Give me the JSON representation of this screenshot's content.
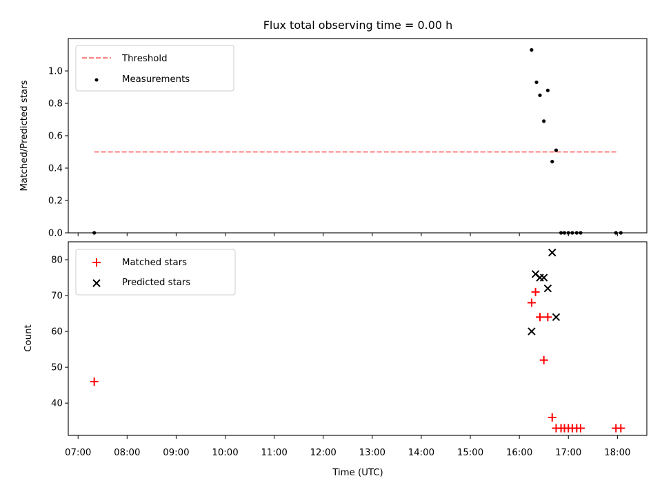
{
  "title": "Flux total observing time = 0.00 h",
  "xlabel": "Time (UTC)",
  "chart_data": [
    {
      "type": "scatter",
      "ylabel": "Matched/Predicted stars",
      "xlim": [
        6.8,
        18.6
      ],
      "ylim": [
        0.0,
        1.2
      ],
      "yticks": [
        0.0,
        0.2,
        0.4,
        0.6,
        0.8,
        1.0
      ],
      "ytick_labels": [
        "0.0",
        "0.2",
        "0.4",
        "0.6",
        "0.8",
        "1.0"
      ],
      "legend_position": "upper left",
      "threshold": {
        "name": "Threshold",
        "x": [
          7.33,
          18.0
        ],
        "y": 0.5,
        "color": "#ff7f7f"
      },
      "series": [
        {
          "name": "Measurements",
          "marker": "dot",
          "color": "#000000",
          "points": [
            [
              7.33,
              0.0
            ],
            [
              16.25,
              1.13
            ],
            [
              16.35,
              0.93
            ],
            [
              16.42,
              0.85
            ],
            [
              16.5,
              0.69
            ],
            [
              16.58,
              0.88
            ],
            [
              16.67,
              0.44
            ],
            [
              16.75,
              0.51
            ],
            [
              16.85,
              0.0
            ],
            [
              16.92,
              0.0
            ],
            [
              17.0,
              0.0
            ],
            [
              17.08,
              0.0
            ],
            [
              17.17,
              0.0
            ],
            [
              17.25,
              0.0
            ],
            [
              17.97,
              0.0
            ],
            [
              18.07,
              0.0
            ]
          ]
        }
      ]
    },
    {
      "type": "scatter",
      "ylabel": "Count",
      "xlim": [
        6.8,
        18.6
      ],
      "ylim": [
        31,
        85
      ],
      "yticks": [
        40,
        50,
        60,
        70,
        80
      ],
      "ytick_labels": [
        "40",
        "50",
        "60",
        "70",
        "80"
      ],
      "legend_position": "upper left",
      "series": [
        {
          "name": "Matched stars",
          "marker": "plus",
          "color": "#ff0000",
          "points": [
            [
              7.33,
              46
            ],
            [
              16.25,
              68
            ],
            [
              16.33,
              71
            ],
            [
              16.42,
              64
            ],
            [
              16.5,
              52
            ],
            [
              16.58,
              64
            ],
            [
              16.67,
              36
            ],
            [
              16.75,
              33
            ],
            [
              16.85,
              33
            ],
            [
              16.92,
              33
            ],
            [
              17.0,
              33
            ],
            [
              17.08,
              33
            ],
            [
              17.17,
              33
            ],
            [
              17.25,
              33
            ],
            [
              17.97,
              33
            ],
            [
              18.07,
              33
            ]
          ]
        },
        {
          "name": "Predicted stars",
          "marker": "x",
          "color": "#000000",
          "points": [
            [
              16.25,
              60
            ],
            [
              16.33,
              76
            ],
            [
              16.42,
              75
            ],
            [
              16.5,
              75
            ],
            [
              16.58,
              72
            ],
            [
              16.67,
              82
            ],
            [
              16.75,
              64
            ]
          ]
        }
      ]
    }
  ],
  "xticks": [
    7,
    8,
    9,
    10,
    11,
    12,
    13,
    14,
    15,
    16,
    17,
    18
  ],
  "xtick_labels": [
    "07:00",
    "08:00",
    "09:00",
    "10:00",
    "11:00",
    "12:00",
    "13:00",
    "14:00",
    "15:00",
    "16:00",
    "17:00",
    "18:00"
  ]
}
